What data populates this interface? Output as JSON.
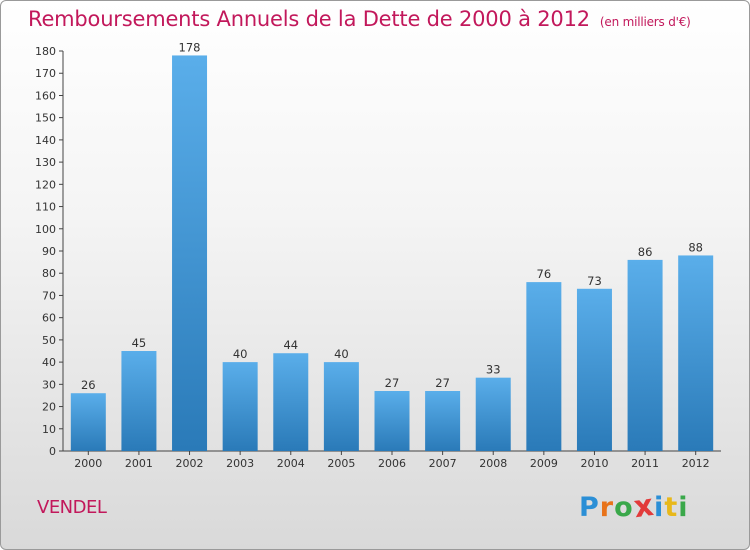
{
  "title": "Remboursements Annuels de la Dette de 2000 à 2012",
  "unit": "(en milliers d'€)",
  "town": "VENDEL",
  "logo": {
    "letters": [
      "P",
      "r",
      "o",
      "x",
      "i",
      "t",
      "i"
    ],
    "colors": [
      "#2b8fd6",
      "#e8731a",
      "#3aa84a",
      "#e23b3b",
      "#2b8fd6",
      "#e8b81a",
      "#3aa84a"
    ]
  },
  "colors": {
    "accent": "#c2185b",
    "bar_light": "#5aaeea",
    "bar_dark": "#2a7ab8"
  },
  "chart_data": {
    "type": "bar",
    "categories": [
      "2000",
      "2001",
      "2002",
      "2003",
      "2004",
      "2005",
      "2006",
      "2007",
      "2008",
      "2009",
      "2010",
      "2011",
      "2012"
    ],
    "values": [
      26,
      45,
      178,
      40,
      44,
      40,
      27,
      27,
      33,
      76,
      73,
      86,
      88
    ],
    "ylim": [
      0,
      180
    ],
    "yticks": [
      0,
      10,
      20,
      30,
      40,
      50,
      60,
      70,
      80,
      90,
      100,
      110,
      120,
      130,
      140,
      150,
      160,
      170,
      180
    ],
    "grid": false,
    "legend": "none"
  }
}
